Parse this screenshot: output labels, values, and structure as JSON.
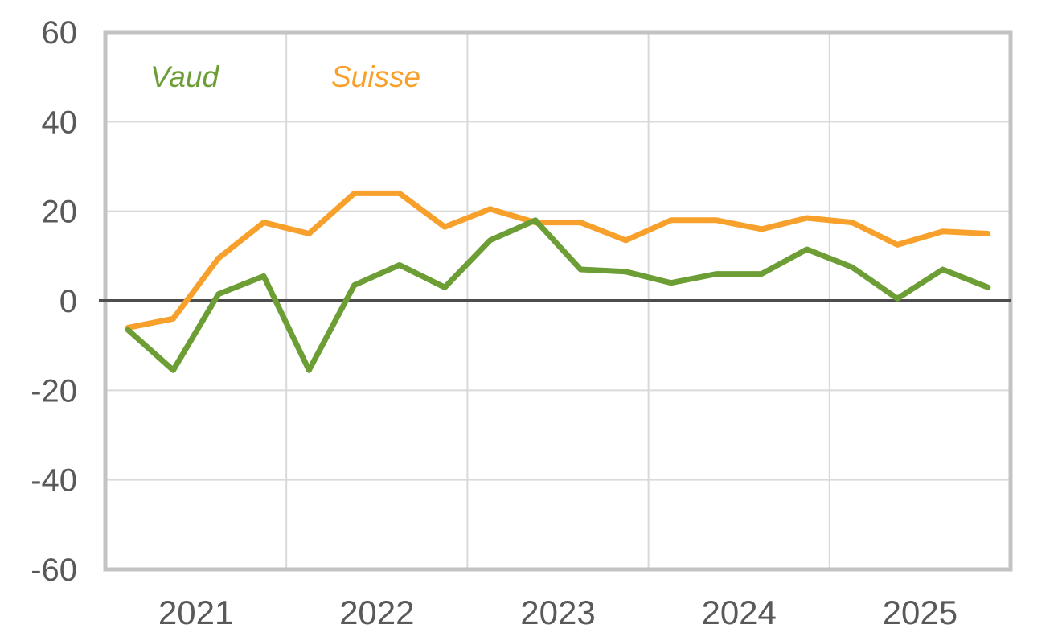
{
  "chart_data": {
    "type": "line",
    "categories": [
      "2021Q1",
      "2021Q2",
      "2021Q3",
      "2021Q4",
      "2022Q1",
      "2022Q2",
      "2022Q3",
      "2022Q4",
      "2023Q1",
      "2023Q2",
      "2023Q3",
      "2023Q4",
      "2024Q1",
      "2024Q2",
      "2024Q3",
      "2024Q4",
      "2025Q1",
      "2025Q2",
      "2025Q3",
      "2025Q4"
    ],
    "series": [
      {
        "name": "Suisse",
        "color": "#F7A12C",
        "values": [
          -6,
          -4,
          9.5,
          17.5,
          15,
          24,
          24,
          16.5,
          20.5,
          17.5,
          17.5,
          13.5,
          18,
          18,
          16,
          18.5,
          17.5,
          12.5,
          15.5,
          15
        ]
      },
      {
        "name": "Vaud",
        "color": "#6D9E36",
        "values": [
          -6.5,
          -15.5,
          1.5,
          5.5,
          -15.5,
          3.5,
          8,
          3,
          13.5,
          18,
          7,
          6.5,
          4,
          6,
          6,
          11.5,
          7.5,
          0.5,
          7,
          3
        ]
      }
    ],
    "legend": {
      "vaud_label": "Vaud",
      "suisse_label": "Suisse",
      "position": "inside-top-left"
    },
    "x_axis": {
      "tick_labels": [
        "2021",
        "2022",
        "2023",
        "2024",
        "2025"
      ]
    },
    "y_axis": {
      "ticks": [
        60,
        40,
        20,
        0,
        -20,
        -40,
        -60
      ],
      "ylim": [
        -60,
        60
      ]
    },
    "xlabel": "",
    "ylabel": "",
    "grid": true,
    "colors": {
      "gridline": "#D9D9D9",
      "plot_border": "#C3C3C3",
      "zero_line": "#4D4D4D",
      "tick_text": "#595959",
      "background": "#FFFFFF"
    }
  }
}
